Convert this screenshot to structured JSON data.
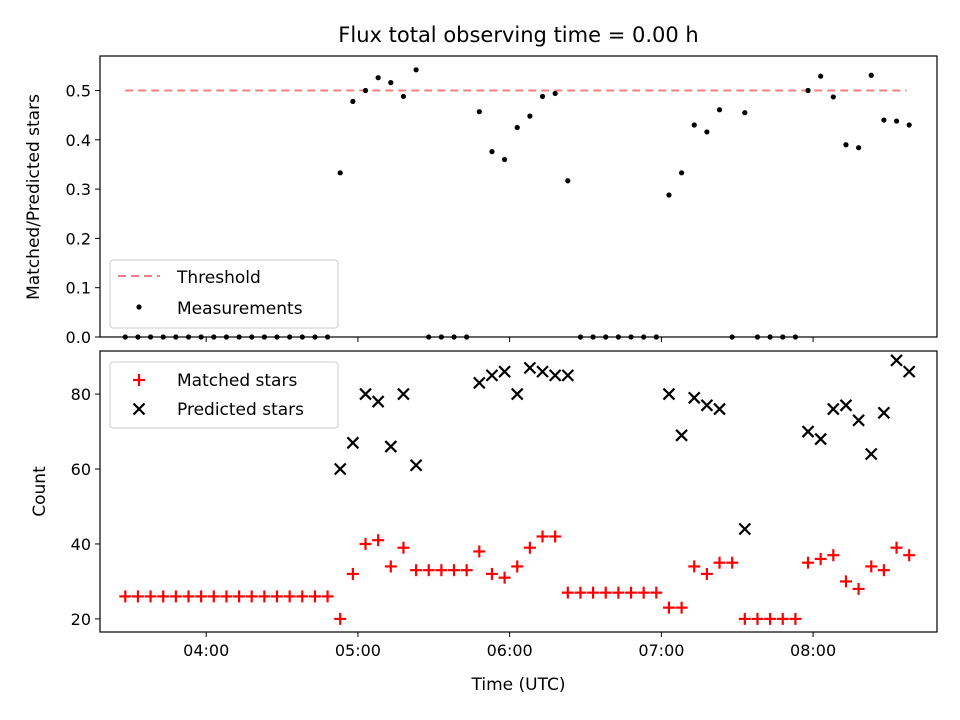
{
  "title": "Flux total observing time = 0.00 h",
  "colors": {
    "threshold": "#f08080",
    "measurement": "#000000",
    "matched": "#ff0000",
    "predicted": "#000000"
  },
  "chart_data": [
    {
      "type": "scatter",
      "ylabel": "Matched/Predicted stars",
      "xlim": [
        "03:18",
        "08:49"
      ],
      "ylim": [
        0,
        0.57
      ],
      "yticks": [
        "0.0",
        "0.1",
        "0.2",
        "0.3",
        "0.4",
        "0.5"
      ],
      "legend": {
        "placement": "lower-left",
        "entries": [
          "Threshold",
          "Measurements"
        ]
      },
      "threshold": {
        "name": "Threshold",
        "value": 0.5,
        "x_range": [
          "03:28",
          "08:37"
        ]
      },
      "series": [
        {
          "name": "Measurements",
          "x": [
            "03:28",
            "03:33",
            "03:38",
            "03:43",
            "03:48",
            "03:53",
            "03:58",
            "04:03",
            "04:08",
            "04:13",
            "04:18",
            "04:23",
            "04:28",
            "04:33",
            "04:38",
            "04:43",
            "04:48",
            "04:53",
            "04:58",
            "05:03",
            "05:08",
            "05:13",
            "05:18",
            "05:23",
            "05:28",
            "05:33",
            "05:38",
            "05:43",
            "05:48",
            "05:53",
            "05:58",
            "06:03",
            "06:08",
            "06:13",
            "06:18",
            "06:23",
            "06:28",
            "06:33",
            "06:38",
            "06:43",
            "06:48",
            "06:53",
            "06:58",
            "07:03",
            "07:08",
            "07:13",
            "07:18",
            "07:23",
            "07:28",
            "07:33",
            "07:38",
            "07:43",
            "07:48",
            "07:53",
            "07:58",
            "08:03",
            "08:08",
            "08:13",
            "08:18",
            "08:23",
            "08:28",
            "08:33",
            "08:38"
          ],
          "y": [
            0,
            0,
            0,
            0,
            0,
            0,
            0,
            0,
            0,
            0,
            0,
            0,
            0,
            0,
            0,
            0,
            0,
            0.333,
            0.478,
            0.5,
            0.526,
            0.516,
            0.488,
            0.542,
            0,
            0,
            0,
            0,
            0.457,
            0.376,
            0.36,
            0.425,
            0.448,
            0.488,
            0.494,
            0.317,
            0,
            0,
            0,
            0,
            0,
            0,
            0,
            0.288,
            0.333,
            0.43,
            0.416,
            0.461,
            0,
            0.455,
            0,
            0,
            0,
            0,
            0.5,
            0.529,
            0.487,
            0.39,
            0.384,
            0.531,
            0.44,
            0.438,
            0.43
          ]
        }
      ]
    },
    {
      "type": "scatter",
      "ylabel": "Count",
      "xlabel": "Time (UTC)",
      "xlim": [
        "03:18",
        "08:49"
      ],
      "ylim": [
        16.5,
        91.5
      ],
      "xticks": [
        "04:00",
        "05:00",
        "06:00",
        "07:00",
        "08:00"
      ],
      "yticks": [
        "20",
        "40",
        "60",
        "80"
      ],
      "legend": {
        "placement": "upper-left",
        "entries": [
          "Matched stars",
          "Predicted stars"
        ]
      },
      "series": [
        {
          "name": "Matched stars",
          "x": [
            "03:28",
            "03:33",
            "03:38",
            "03:43",
            "03:48",
            "03:53",
            "03:58",
            "04:03",
            "04:08",
            "04:13",
            "04:18",
            "04:23",
            "04:28",
            "04:33",
            "04:38",
            "04:43",
            "04:48",
            "04:53",
            "04:58",
            "05:03",
            "05:08",
            "05:13",
            "05:18",
            "05:23",
            "05:28",
            "05:33",
            "05:38",
            "05:43",
            "05:48",
            "05:53",
            "05:58",
            "06:03",
            "06:08",
            "06:13",
            "06:18",
            "06:23",
            "06:28",
            "06:33",
            "06:38",
            "06:43",
            "06:48",
            "06:53",
            "06:58",
            "07:03",
            "07:08",
            "07:13",
            "07:18",
            "07:23",
            "07:28",
            "07:33",
            "07:38",
            "07:43",
            "07:48",
            "07:53",
            "07:58",
            "08:03",
            "08:08",
            "08:13",
            "08:18",
            "08:23",
            "08:28",
            "08:33",
            "08:38"
          ],
          "y": [
            26,
            26,
            26,
            26,
            26,
            26,
            26,
            26,
            26,
            26,
            26,
            26,
            26,
            26,
            26,
            26,
            26,
            20,
            32,
            40,
            41,
            34,
            39,
            33,
            33,
            33,
            33,
            33,
            38,
            32,
            31,
            34,
            39,
            42,
            42,
            27,
            27,
            27,
            27,
            27,
            27,
            27,
            27,
            23,
            23,
            34,
            32,
            35,
            35,
            20,
            20,
            20,
            20,
            20,
            35,
            36,
            37,
            30,
            28,
            34,
            33,
            39,
            37
          ]
        },
        {
          "name": "Predicted stars",
          "x": [
            "04:53",
            "04:58",
            "05:03",
            "05:08",
            "05:13",
            "05:18",
            "05:23",
            "05:48",
            "05:53",
            "05:58",
            "06:03",
            "06:08",
            "06:13",
            "06:18",
            "06:23",
            "07:03",
            "07:08",
            "07:13",
            "07:18",
            "07:23",
            "07:33",
            "07:58",
            "08:03",
            "08:08",
            "08:13",
            "08:18",
            "08:23",
            "08:28",
            "08:33",
            "08:38"
          ],
          "y": [
            60,
            67,
            80,
            78,
            66,
            80,
            61,
            83,
            85,
            86,
            80,
            87,
            86,
            85,
            85,
            80,
            69,
            79,
            77,
            76,
            44,
            70,
            68,
            76,
            77,
            73,
            64,
            75,
            89,
            86
          ]
        }
      ]
    }
  ]
}
